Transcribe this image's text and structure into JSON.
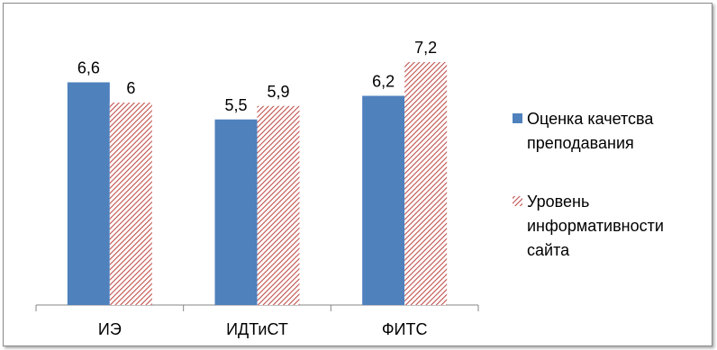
{
  "chart_data": {
    "type": "bar",
    "title": "",
    "xlabel": "",
    "ylabel": "",
    "categories": [
      "ИЭ",
      "ИДТиСТ",
      "ФИТС"
    ],
    "series": [
      {
        "name": "Оценка качетсва преподавания",
        "legend_lines": [
          "Оценка качетсва",
          "преподавания"
        ],
        "values": [
          6.6,
          5.5,
          6.2
        ],
        "labels": [
          "6,6",
          "5,5",
          "6,2"
        ],
        "color": "#4f81bd",
        "pattern": "solid"
      },
      {
        "name": "Уровень информативности сайта",
        "legend_lines": [
          "Уровень",
          "информативности",
          "сайта"
        ],
        "values": [
          6,
          5.9,
          7.2
        ],
        "labels": [
          "6",
          "5,9",
          "7,2"
        ],
        "color": "#c0504d",
        "pattern": "diagonal-hatch"
      }
    ],
    "ylim": [
      0,
      8
    ],
    "grid": false,
    "legend_position": "right"
  }
}
